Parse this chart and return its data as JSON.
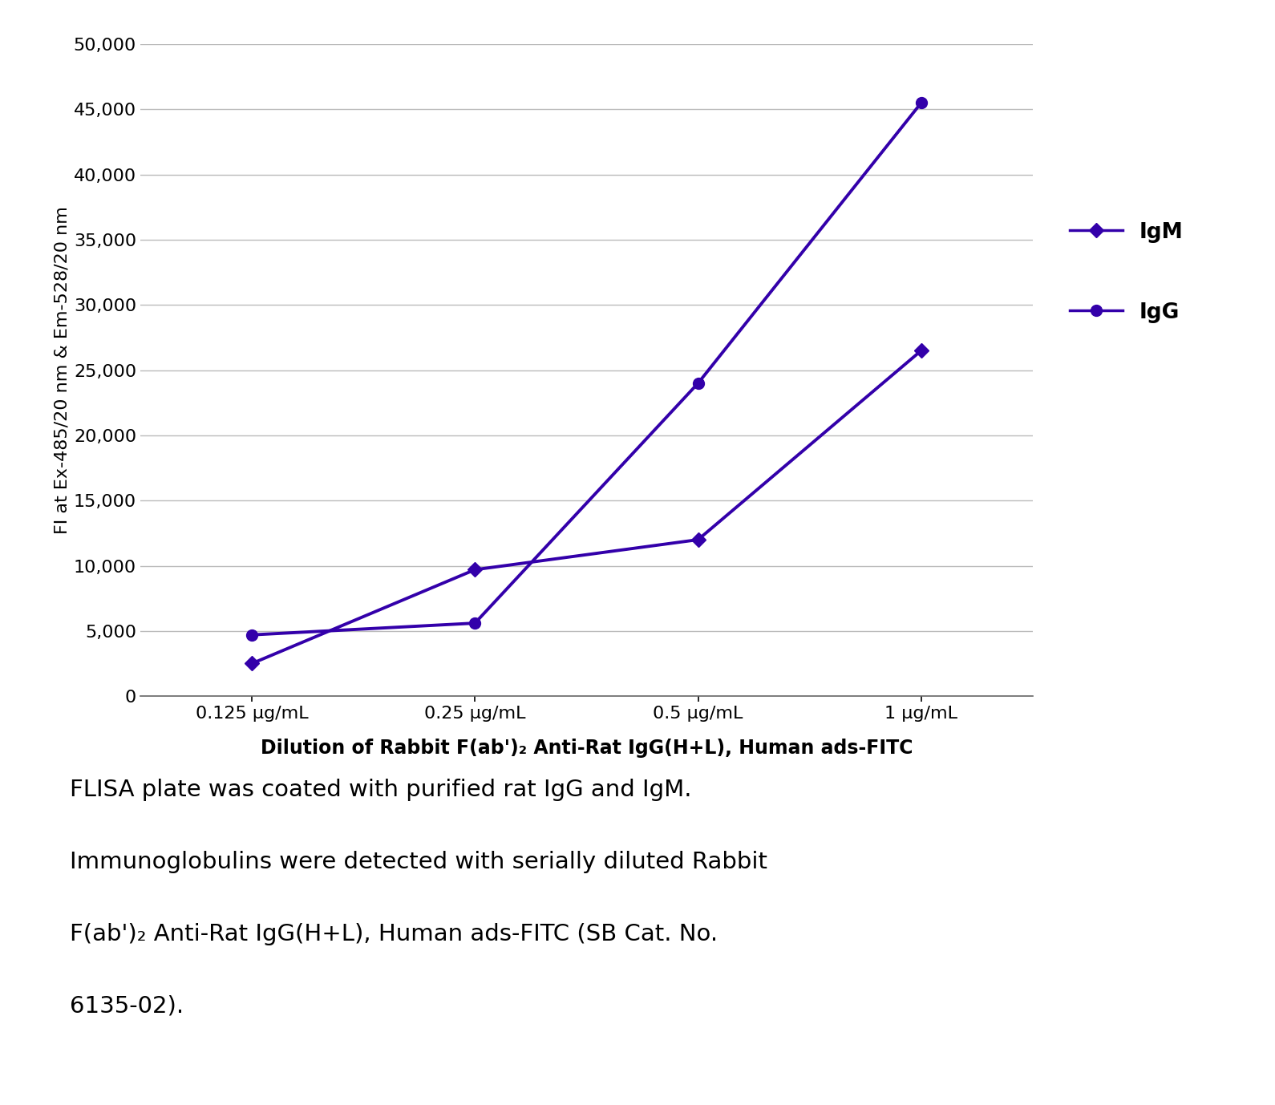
{
  "x_labels": [
    "0.125 μg/mL",
    "0.25 μg/mL",
    "0.5 μg/mL",
    "1 μg/mL"
  ],
  "x_values": [
    0,
    1,
    2,
    3
  ],
  "IgM_values": [
    2500,
    9700,
    12000,
    26500
  ],
  "IgG_values": [
    4700,
    5600,
    24000,
    45500
  ],
  "line_color": "#3300AA",
  "ylim": [
    0,
    50000
  ],
  "yticks": [
    0,
    5000,
    10000,
    15000,
    20000,
    25000,
    30000,
    35000,
    40000,
    45000,
    50000
  ],
  "ylabel": "FI at Ex-485/20 nm & Em-528/20 nm",
  "xlabel": "Dilution of Rabbit F(ab')₂ Anti-Rat IgG(H+L), Human ads-FITC",
  "legend_IgM": "IgM",
  "legend_IgG": "IgG",
  "caption_line1": "FLISA plate was coated with purified rat IgG and IgM.",
  "caption_line2": "Immunoglobulins were detected with serially diluted Rabbit",
  "caption_line3": "F(ab')₂ Anti-Rat IgG(H+L), Human ads-FITC (SB Cat. No.",
  "caption_line4": "6135-02).",
  "background_color": "#ffffff",
  "grid_color": "#bbbbbb"
}
